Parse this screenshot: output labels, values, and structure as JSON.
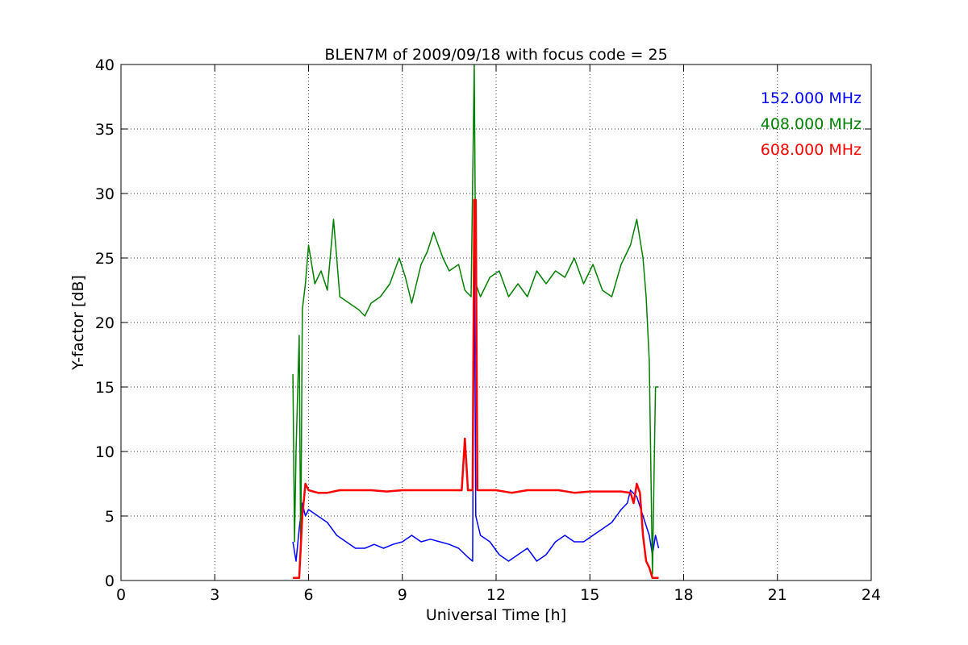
{
  "chart_data": {
    "type": "line",
    "title": "BLEN7M of 2009/09/18 with focus code = 25",
    "xlabel": "Universal Time [h]",
    "ylabel": "Y-factor [dB]",
    "xlim": [
      0,
      24
    ],
    "ylim": [
      0,
      40
    ],
    "xticks": [
      0,
      3,
      6,
      9,
      12,
      15,
      18,
      21,
      24
    ],
    "yticks": [
      0,
      5,
      10,
      15,
      20,
      25,
      30,
      35,
      40
    ],
    "grid": true,
    "legend_position": "top-right",
    "series": [
      {
        "name": "152.000 MHz",
        "color": "#0000ff",
        "x": [
          5.5,
          5.6,
          5.7,
          5.8,
          5.9,
          6.0,
          6.3,
          6.6,
          6.9,
          7.2,
          7.5,
          7.8,
          8.1,
          8.4,
          8.7,
          9.0,
          9.3,
          9.6,
          9.9,
          10.2,
          10.5,
          10.8,
          11.1,
          11.25,
          11.3,
          11.35,
          11.5,
          11.8,
          12.1,
          12.4,
          12.7,
          13.0,
          13.3,
          13.6,
          13.9,
          14.2,
          14.5,
          14.8,
          15.1,
          15.4,
          15.7,
          16.0,
          16.2,
          16.3,
          16.5,
          16.7,
          16.9,
          17.0,
          17.1,
          17.2
        ],
        "y": [
          3.0,
          1.5,
          4.0,
          6.0,
          5.0,
          5.5,
          5.0,
          4.5,
          3.5,
          3.0,
          2.5,
          2.5,
          2.8,
          2.5,
          2.8,
          3.0,
          3.5,
          3.0,
          3.2,
          3.0,
          2.8,
          2.5,
          1.8,
          1.5,
          28.0,
          5.0,
          3.5,
          3.0,
          2.0,
          1.5,
          2.0,
          2.5,
          1.5,
          2.0,
          3.0,
          3.5,
          3.0,
          3.0,
          3.5,
          4.0,
          4.5,
          5.5,
          6.0,
          7.0,
          6.5,
          5.0,
          3.5,
          2.0,
          3.5,
          2.5
        ]
      },
      {
        "name": "408.000 MHz",
        "color": "#008000",
        "x": [
          5.5,
          5.55,
          5.6,
          5.7,
          5.75,
          5.8,
          5.9,
          6.0,
          6.2,
          6.4,
          6.6,
          6.8,
          7.0,
          7.3,
          7.6,
          7.8,
          8.0,
          8.3,
          8.6,
          8.9,
          9.1,
          9.3,
          9.6,
          9.8,
          10.0,
          10.3,
          10.5,
          10.8,
          11.0,
          11.2,
          11.3,
          11.35,
          11.5,
          11.8,
          12.1,
          12.4,
          12.7,
          13.0,
          13.3,
          13.6,
          13.9,
          14.2,
          14.5,
          14.8,
          15.1,
          15.4,
          15.7,
          16.0,
          16.3,
          16.5,
          16.7,
          16.8,
          16.9,
          17.0,
          17.1,
          17.2
        ],
        "y": [
          16.0,
          3.0,
          10.0,
          19.0,
          2.0,
          21.0,
          23.0,
          26.0,
          23.0,
          24.0,
          22.5,
          28.0,
          22.0,
          21.5,
          21.0,
          20.5,
          21.5,
          22.0,
          23.0,
          25.0,
          23.5,
          21.5,
          24.5,
          25.5,
          27.0,
          25.0,
          24.0,
          24.5,
          22.5,
          22.0,
          40.0,
          23.0,
          22.0,
          23.5,
          24.0,
          22.0,
          23.0,
          22.0,
          24.0,
          23.0,
          24.0,
          23.5,
          25.0,
          23.0,
          24.5,
          22.5,
          22.0,
          24.5,
          26.0,
          28.0,
          25.0,
          22.0,
          17.0,
          0.5,
          15.0,
          15.0
        ]
      },
      {
        "name": "608.000 MHz",
        "color": "#ff0000",
        "x": [
          5.5,
          5.6,
          5.7,
          5.8,
          5.9,
          6.0,
          6.3,
          6.6,
          7.0,
          7.5,
          8.0,
          8.5,
          9.0,
          9.5,
          10.0,
          10.5,
          10.9,
          11.0,
          11.1,
          11.25,
          11.3,
          11.35,
          11.4,
          11.6,
          12.0,
          12.5,
          13.0,
          13.5,
          14.0,
          14.5,
          15.0,
          15.5,
          16.0,
          16.3,
          16.4,
          16.5,
          16.6,
          16.7,
          16.8,
          16.9,
          17.0,
          17.2
        ],
        "y": [
          0.2,
          0.2,
          0.2,
          5.0,
          7.5,
          7.0,
          6.8,
          6.8,
          7.0,
          7.0,
          7.0,
          6.9,
          7.0,
          7.0,
          7.0,
          7.0,
          7.0,
          11.0,
          7.0,
          7.0,
          29.5,
          29.5,
          7.0,
          7.0,
          7.0,
          6.8,
          7.0,
          7.0,
          7.0,
          6.8,
          6.9,
          6.9,
          6.9,
          6.8,
          6.0,
          7.5,
          6.8,
          3.5,
          1.5,
          1.0,
          0.2,
          0.2
        ]
      }
    ]
  }
}
